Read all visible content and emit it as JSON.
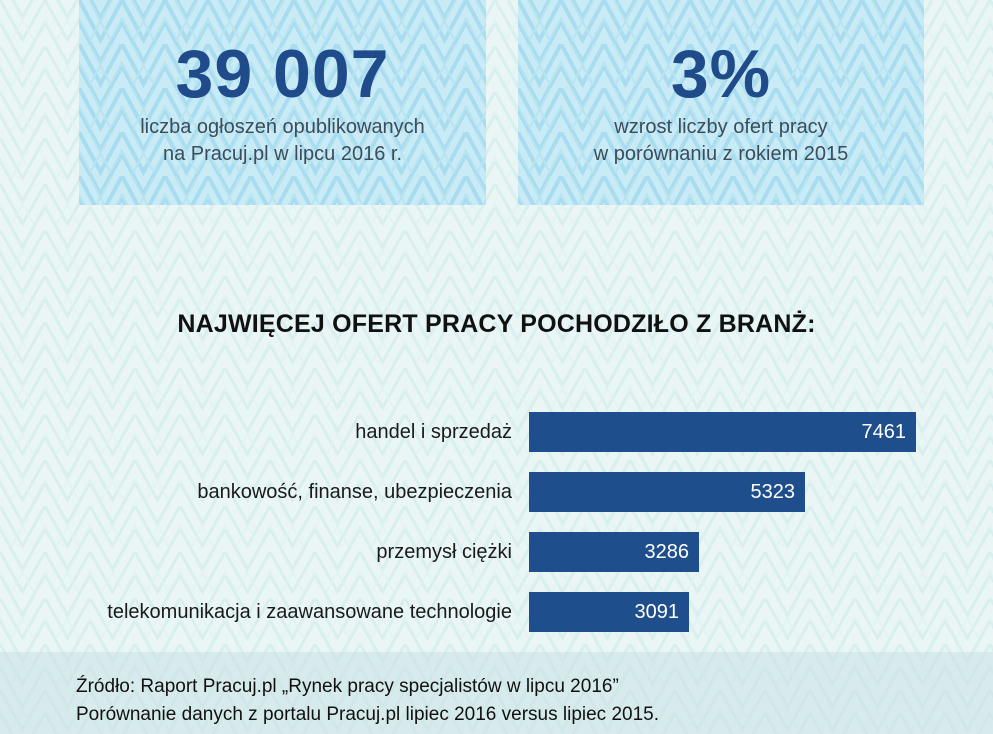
{
  "stats": {
    "left": {
      "value": "39 007",
      "caption_line1": "liczba ogłoszeń opublikowanych",
      "caption_line2": "na Pracuj.pl w lipcu 2016 r."
    },
    "right": {
      "value": "3%",
      "caption_line1": "wzrost liczby ofert pracy",
      "caption_line2": "w porównaniu z rokiem 2015"
    }
  },
  "section_title": "NAJWIĘCEJ OFERT PRACY POCHODZIŁO Z BRANŻ:",
  "colors": {
    "bar": "#1f4e8c",
    "big_number": "#1f4b8b",
    "box_background": "#c8ebf6",
    "page_background": "#eaf6f6"
  },
  "chart_data": {
    "type": "bar",
    "orientation": "horizontal",
    "title": "NAJWIĘCEJ OFERT PRACY POCHODZIŁO Z BRANŻ:",
    "categories": [
      "handel i sprzedaż",
      "bankowość, finanse, ubezpieczenia",
      "przemysł ciężki",
      "telekomunikacja i zaawansowane technologie"
    ],
    "values": [
      7461,
      5323,
      3286,
      3091
    ],
    "value_labels": [
      "7461",
      "5323",
      "3286",
      "3091"
    ],
    "xlabel": "",
    "ylabel": "",
    "grid": false,
    "legend": false
  },
  "footer": {
    "line1": "Źródło: Raport Pracuj.pl „Rynek pracy specjalistów w lipcu 2016”",
    "line2": "Porównanie danych z portalu Pracuj.pl lipiec 2016 versus lipiec 2015."
  }
}
